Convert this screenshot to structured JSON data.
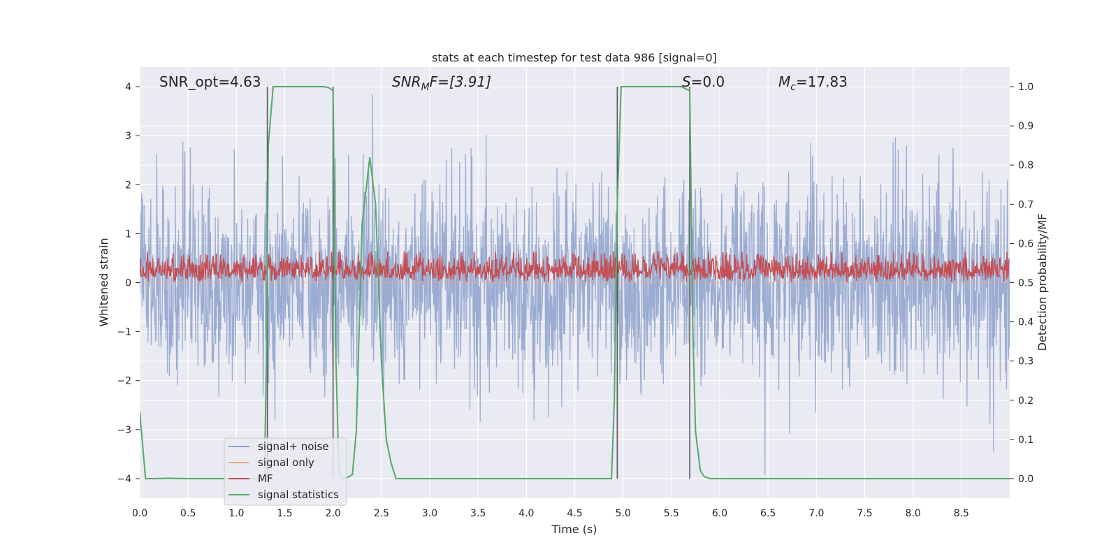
{
  "chart_data": {
    "type": "line",
    "title": "stats at each timestep for test data 986 [signal=0]",
    "xlabel": "Time (s)",
    "ylabel_left": "Whitened strain",
    "ylabel_right": "Detection probability/MF",
    "xlim": [
      0.0,
      9.0
    ],
    "ylim_left": [
      -4.4,
      4.4
    ],
    "ylim_right": [
      -0.05,
      1.05
    ],
    "x_ticks": [
      0.0,
      0.5,
      1.0,
      1.5,
      2.0,
      2.5,
      3.0,
      3.5,
      4.0,
      4.5,
      5.0,
      5.5,
      6.0,
      6.5,
      7.0,
      7.5,
      8.0,
      8.5
    ],
    "x_tick_labels": [
      "0.0",
      "0.5",
      "1.0",
      "1.5",
      "2.0",
      "2.5",
      "3.0",
      "3.5",
      "4.0",
      "4.5",
      "5.0",
      "5.5",
      "6.0",
      "6.5",
      "7.0",
      "7.5",
      "8.0",
      "8.5"
    ],
    "y_left_ticks": [
      -4,
      -3,
      -2,
      -1,
      0,
      1,
      2,
      3,
      4
    ],
    "y_left_tick_labels": [
      "−4",
      "−3",
      "−2",
      "−1",
      "0",
      "1",
      "2",
      "3",
      "4"
    ],
    "y_right_ticks": [
      0.0,
      0.1,
      0.2,
      0.3,
      0.4,
      0.5,
      0.6,
      0.7,
      0.8,
      0.9,
      1.0
    ],
    "y_right_tick_labels": [
      "0.0",
      "0.1",
      "0.2",
      "0.3",
      "0.4",
      "0.5",
      "0.6",
      "0.7",
      "0.8",
      "0.9",
      "1.0"
    ],
    "grid": true,
    "background": "#eaeaf2",
    "annotations": {
      "snr_opt": "SNR_opt=4.63",
      "snr_mf_main": "SNR",
      "snr_mf_sub": "M",
      "snr_mf_rest": "F=[3.91]",
      "s_main": "S",
      "s_rest": "=0.0",
      "mc_main": "M",
      "mc_sub": "c",
      "mc_rest": "=17.83"
    },
    "vertical_lines_x": [
      1.32,
      2.0,
      4.94,
      5.69
    ],
    "series": [
      {
        "name": "signal+ noise",
        "color": "#8da1cd",
        "axis": "left",
        "style": "dense noise",
        "envelope_typical": [
          -1.6,
          1.6
        ],
        "envelope_peak": [
          -4.0,
          4.0
        ]
      },
      {
        "name": "signal only",
        "color": "#eea386",
        "axis": "left",
        "style": "flat at zero"
      },
      {
        "name": "MF",
        "color": "#c44e52",
        "axis": "right",
        "style": "dense noise",
        "band": [
          0.5,
          0.6
        ],
        "peak": 0.58
      },
      {
        "name": "signal statistics",
        "color": "#55a868",
        "axis": "right",
        "points": [
          [
            0.0,
            0.17
          ],
          [
            0.06,
            0.0
          ],
          [
            0.15,
            0.0
          ],
          [
            0.3,
            0.001
          ],
          [
            0.5,
            0.0
          ],
          [
            1.0,
            0.0
          ],
          [
            1.27,
            0.0
          ],
          [
            1.29,
            0.01
          ],
          [
            1.31,
            0.3
          ],
          [
            1.33,
            0.85
          ],
          [
            1.38,
            1.0
          ],
          [
            1.6,
            1.0
          ],
          [
            1.9,
            1.0
          ],
          [
            1.95,
            0.998
          ],
          [
            2.0,
            0.99
          ],
          [
            2.03,
            0.3
          ],
          [
            2.06,
            0.02
          ],
          [
            2.1,
            0.0
          ],
          [
            2.15,
            0.003
          ],
          [
            2.2,
            0.01
          ],
          [
            2.24,
            0.12
          ],
          [
            2.3,
            0.65
          ],
          [
            2.38,
            0.82
          ],
          [
            2.44,
            0.7
          ],
          [
            2.5,
            0.3
          ],
          [
            2.55,
            0.1
          ],
          [
            2.6,
            0.04
          ],
          [
            2.65,
            0.0
          ],
          [
            3.0,
            0.0
          ],
          [
            4.0,
            0.0
          ],
          [
            4.88,
            0.0
          ],
          [
            4.91,
            0.2
          ],
          [
            4.94,
            0.7
          ],
          [
            4.98,
            1.0
          ],
          [
            5.2,
            1.0
          ],
          [
            5.6,
            1.0
          ],
          [
            5.69,
            0.99
          ],
          [
            5.72,
            0.4
          ],
          [
            5.75,
            0.12
          ],
          [
            5.8,
            0.02
          ],
          [
            5.84,
            0.005
          ],
          [
            5.9,
            0.0
          ],
          [
            6.5,
            0.0
          ],
          [
            7.5,
            0.0
          ],
          [
            8.5,
            0.0
          ],
          [
            9.0,
            0.0
          ]
        ]
      }
    ],
    "legend": {
      "position": "lower-left",
      "entries": [
        "signal+ noise",
        "signal only",
        "MF",
        "signal statistics"
      ]
    }
  }
}
